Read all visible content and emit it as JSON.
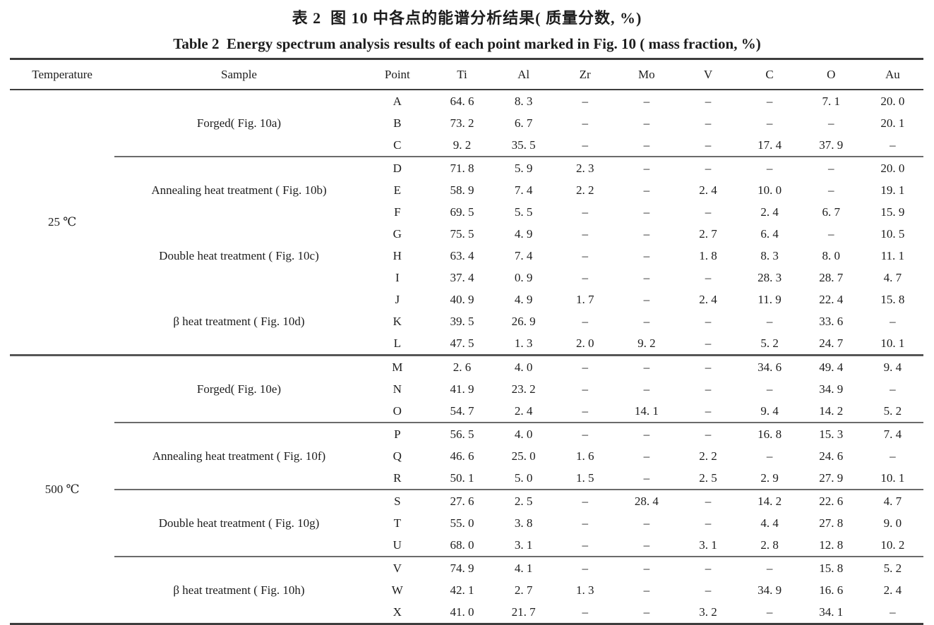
{
  "titles": {
    "zh": "表 2  图 10 中各点的能谱分析结果( 质量分数, %)",
    "en": "Table 2  Energy spectrum analysis results of each point marked in Fig. 10 ( mass fraction, %)"
  },
  "table": {
    "columns": [
      "Temperature",
      "Sample",
      "Point",
      "Ti",
      "Al",
      "Zr",
      "Mo",
      "V",
      "C",
      "O",
      "Au"
    ],
    "missing_symbol": "–",
    "sections": [
      {
        "temperature": "25 ℃",
        "groups": [
          {
            "sample": "Forged( Fig. 10a)",
            "separator": false,
            "rows": [
              {
                "point": "A",
                "values": [
                  "64. 6",
                  "8. 3",
                  "–",
                  "–",
                  "–",
                  "–",
                  "7. 1",
                  "20. 0"
                ]
              },
              {
                "point": "B",
                "values": [
                  "73. 2",
                  "6. 7",
                  "–",
                  "–",
                  "–",
                  "–",
                  "–",
                  "20. 1"
                ]
              },
              {
                "point": "C",
                "values": [
                  "9. 2",
                  "35. 5",
                  "–",
                  "–",
                  "–",
                  "17. 4",
                  "37. 9",
                  "–"
                ]
              }
            ]
          },
          {
            "sample": "Annealing heat treatment ( Fig. 10b)",
            "separator": true,
            "rows": [
              {
                "point": "D",
                "values": [
                  "71. 8",
                  "5. 9",
                  "2. 3",
                  "–",
                  "–",
                  "–",
                  "–",
                  "20. 0"
                ]
              },
              {
                "point": "E",
                "values": [
                  "58. 9",
                  "7. 4",
                  "2. 2",
                  "–",
                  "2. 4",
                  "10. 0",
                  "–",
                  "19. 1"
                ]
              },
              {
                "point": "F",
                "values": [
                  "69. 5",
                  "5. 5",
                  "–",
                  "–",
                  "–",
                  "2. 4",
                  "6. 7",
                  "15. 9"
                ]
              }
            ]
          },
          {
            "sample": "Double heat treatment ( Fig. 10c)",
            "separator": false,
            "rows": [
              {
                "point": "G",
                "values": [
                  "75. 5",
                  "4. 9",
                  "–",
                  "–",
                  "2. 7",
                  "6. 4",
                  "–",
                  "10. 5"
                ]
              },
              {
                "point": "H",
                "values": [
                  "63. 4",
                  "7. 4",
                  "–",
                  "–",
                  "1. 8",
                  "8. 3",
                  "8. 0",
                  "11. 1"
                ]
              },
              {
                "point": "I",
                "values": [
                  "37. 4",
                  "0. 9",
                  "–",
                  "–",
                  "–",
                  "28. 3",
                  "28. 7",
                  "4. 7"
                ]
              }
            ]
          },
          {
            "sample": "β heat treatment ( Fig. 10d)",
            "separator": false,
            "rows": [
              {
                "point": "J",
                "values": [
                  "40. 9",
                  "4. 9",
                  "1. 7",
                  "–",
                  "2. 4",
                  "11. 9",
                  "22. 4",
                  "15. 8"
                ]
              },
              {
                "point": "K",
                "values": [
                  "39. 5",
                  "26. 9",
                  "–",
                  "–",
                  "–",
                  "–",
                  "33. 6",
                  "–"
                ]
              },
              {
                "point": "L",
                "values": [
                  "47. 5",
                  "1. 3",
                  "2. 0",
                  "9. 2",
                  "–",
                  "5. 2",
                  "24. 7",
                  "10. 1"
                ]
              }
            ]
          }
        ]
      },
      {
        "temperature": "500 ℃",
        "groups": [
          {
            "sample": "Forged( Fig. 10e)",
            "separator": false,
            "rows": [
              {
                "point": "M",
                "values": [
                  "2. 6",
                  "4. 0",
                  "–",
                  "–",
                  "–",
                  "34. 6",
                  "49. 4",
                  "9. 4"
                ]
              },
              {
                "point": "N",
                "values": [
                  "41. 9",
                  "23. 2",
                  "–",
                  "–",
                  "–",
                  "–",
                  "34. 9",
                  "–"
                ]
              },
              {
                "point": "O",
                "values": [
                  "54. 7",
                  "2. 4",
                  "–",
                  "14. 1",
                  "–",
                  "9. 4",
                  "14. 2",
                  "5. 2"
                ]
              }
            ]
          },
          {
            "sample": "Annealing heat treatment ( Fig. 10f)",
            "separator": true,
            "rows": [
              {
                "point": "P",
                "values": [
                  "56. 5",
                  "4. 0",
                  "–",
                  "–",
                  "–",
                  "16. 8",
                  "15. 3",
                  "7. 4"
                ]
              },
              {
                "point": "Q",
                "values": [
                  "46. 6",
                  "25. 0",
                  "1. 6",
                  "–",
                  "2. 2",
                  "–",
                  "24. 6",
                  "–"
                ]
              },
              {
                "point": "R",
                "values": [
                  "50. 1",
                  "5. 0",
                  "1. 5",
                  "–",
                  "2. 5",
                  "2. 9",
                  "27. 9",
                  "10. 1"
                ]
              }
            ]
          },
          {
            "sample": "Double heat treatment ( Fig. 10g)",
            "separator": true,
            "rows": [
              {
                "point": "S",
                "values": [
                  "27. 6",
                  "2. 5",
                  "–",
                  "28. 4",
                  "–",
                  "14. 2",
                  "22. 6",
                  "4. 7"
                ]
              },
              {
                "point": "T",
                "values": [
                  "55. 0",
                  "3. 8",
                  "–",
                  "–",
                  "–",
                  "4. 4",
                  "27. 8",
                  "9. 0"
                ]
              },
              {
                "point": "U",
                "values": [
                  "68. 0",
                  "3. 1",
                  "–",
                  "–",
                  "3. 1",
                  "2. 8",
                  "12. 8",
                  "10. 2"
                ]
              }
            ]
          },
          {
            "sample": "β heat treatment ( Fig. 10h)",
            "separator": true,
            "rows": [
              {
                "point": "V",
                "values": [
                  "74. 9",
                  "4. 1",
                  "–",
                  "–",
                  "–",
                  "–",
                  "15. 8",
                  "5. 2"
                ]
              },
              {
                "point": "W",
                "values": [
                  "42. 1",
                  "2. 7",
                  "1. 3",
                  "–",
                  "–",
                  "34. 9",
                  "16. 6",
                  "2. 4"
                ]
              },
              {
                "point": "X",
                "values": [
                  "41. 0",
                  "21. 7",
                  "–",
                  "–",
                  "3. 2",
                  "–",
                  "34. 1",
                  "–"
                ]
              }
            ]
          }
        ]
      }
    ]
  }
}
